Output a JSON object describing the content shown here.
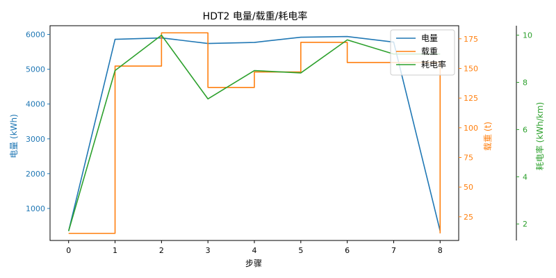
{
  "chart_data": {
    "type": "line",
    "title": "HDT2 电量/载重/耗电率",
    "xlabel": "步骤",
    "x": [
      0,
      1,
      2,
      3,
      4,
      5,
      6,
      7,
      8
    ],
    "xticks": [
      "0",
      "1",
      "2",
      "3",
      "4",
      "5",
      "6",
      "7",
      "8"
    ],
    "legend_position": "top-right",
    "axes": {
      "y_left": {
        "label": "电量 (kWh)",
        "lim": [
          80,
          6250
        ],
        "ticks": [
          1000,
          2000,
          3000,
          4000,
          5000,
          6000
        ],
        "color": "#1f77b4"
      },
      "y_right": {
        "label": "载重 (t)",
        "lim": [
          5,
          186
        ],
        "ticks": [
          25,
          50,
          75,
          100,
          125,
          150,
          175
        ],
        "color": "#ff7f0e"
      },
      "y_right2": {
        "label": "耗电率 (kWh/km)",
        "lim": [
          1.3,
          10.4
        ],
        "ticks": [
          2,
          4,
          6,
          8,
          10
        ],
        "color": "#2ca02c"
      }
    },
    "series": [
      {
        "name": "电量",
        "axis": "y_left",
        "color": "#1f77b4",
        "step": false,
        "values": [
          350,
          5860,
          5900,
          5740,
          5770,
          5920,
          5940,
          5780,
          350
        ]
      },
      {
        "name": "载重",
        "axis": "y_right",
        "color": "#ff7f0e",
        "step": true,
        "values": [
          11,
          152,
          180,
          134,
          147,
          172,
          155,
          155,
          11
        ]
      },
      {
        "name": "耗电率",
        "axis": "y_right2",
        "color": "#2ca02c",
        "step": false,
        "values": [
          1.7,
          8.5,
          10.0,
          7.3,
          8.5,
          8.4,
          9.8,
          9.2,
          9.2
        ]
      }
    ]
  }
}
